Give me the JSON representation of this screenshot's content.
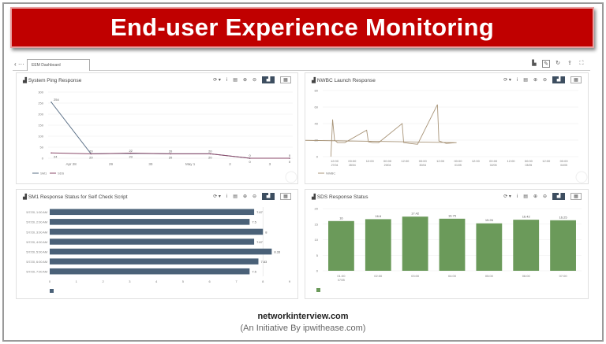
{
  "banner": {
    "title": "End-user Experience Monitoring"
  },
  "toolbar": {
    "tab_label": "EEM Dashboard",
    "back": "‹ ···",
    "icons": [
      "chart-icon",
      "edit-icon",
      "refresh-icon",
      "share-icon",
      "fullscreen-icon"
    ]
  },
  "panel_icons": {
    "refresh": "⟳ ▾",
    "info": "i",
    "doc": "▤",
    "zoom_in": "⊕",
    "zoom_out": "⊖",
    "table": "▦"
  },
  "panels": [
    {
      "title": "System Ping Response"
    },
    {
      "title": "NWBC Launch Response"
    },
    {
      "title": "SM1 Response Status for Self Check Script"
    },
    {
      "title": "SDS Response Status"
    }
  ],
  "chart_data": [
    {
      "type": "line",
      "ylim": [
        0,
        300
      ],
      "yticks": [
        0,
        50,
        100,
        150,
        200,
        250,
        300
      ],
      "x_tick_labels": [
        "Apr 28",
        "29",
        "30",
        "May 1",
        "2",
        "3"
      ],
      "series": [
        {
          "name": "SM1",
          "color": "#5a6f86",
          "values": [
            254,
            20,
            22,
            20,
            20,
            0,
            0
          ]
        },
        {
          "name": "SDS",
          "color": "#8b4a6a",
          "values": [
            24,
            20,
            23,
            20,
            20,
            0,
            0
          ]
        }
      ],
      "legend": "bottom-left"
    },
    {
      "type": "line",
      "ylim": [
        0,
        80
      ],
      "yticks": [
        0,
        20,
        40,
        60,
        80
      ],
      "x_ticks": [
        [
          "12:00",
          "27/04"
        ],
        [
          "00:00",
          "28/04"
        ],
        [
          "12:00",
          ""
        ],
        [
          "00:00",
          "29/04"
        ],
        [
          "12:00",
          ""
        ],
        [
          "00:00",
          "30/04"
        ],
        [
          "12:00",
          ""
        ],
        [
          "00:00",
          "01/05"
        ],
        [
          "12:00",
          ""
        ],
        [
          "00:00",
          "02/05"
        ],
        [
          "12:00",
          ""
        ],
        [
          "00:00",
          "03/05"
        ],
        [
          "12:00",
          ""
        ],
        [
          "00:00",
          "04/05"
        ]
      ],
      "series": [
        {
          "name": "NWBC",
          "color": "#a89478",
          "points": [
            [
              "27/04 09:30",
              0
            ],
            [
              "27/04 10:40",
              45
            ],
            [
              "27/04 12:00",
              20
            ],
            [
              "27/04 14:00",
              17
            ],
            [
              "27/04 19:00",
              17
            ],
            [
              "28/04 09:50",
              32
            ],
            [
              "28/04 11:00",
              18
            ],
            [
              "28/04 14:00",
              17
            ],
            [
              "28/04 18:00",
              17
            ],
            [
              "29/04 10:00",
              40
            ],
            [
              "29/04 11:00",
              17
            ],
            [
              "29/04 15:00",
              16
            ],
            [
              "29/04 20:30",
              15
            ],
            [
              "30/04 10:00",
              63
            ],
            [
              "30/04 11:00",
              19
            ],
            [
              "30/04 16:00",
              16
            ],
            [
              "30/04 23:00",
              17
            ],
            [
              "01/05 10:30",
              36
            ],
            [
              "01/05 11:30",
              17
            ],
            [
              "01/05 20:00",
              19
            ],
            [
              "02/05 05:30",
              19
            ],
            [
              "02/05 07:00",
              0
            ],
            [
              "04/05 06:00",
              0
            ]
          ]
        }
      ],
      "legend": "bottom-left"
    },
    {
      "type": "bar",
      "orientation": "horizontal",
      "xlim": [
        0,
        9
      ],
      "xticks": [
        0,
        1,
        2,
        3,
        4,
        5,
        6,
        7,
        8,
        9
      ],
      "categories": [
        "5/7/20, 1:00 AM",
        "5/7/20, 2:00 AM",
        "5/7/20, 3:00 AM",
        "5/7/20, 4:00 AM",
        "5/7/20, 5:00 AM",
        "5/7/20, 6:00 AM",
        "5/7/20, 7:00 AM"
      ],
      "values": [
        7.67,
        7.5,
        8,
        7.67,
        8.33,
        7.83,
        7.5
      ],
      "color": "#4a6178"
    },
    {
      "type": "bar",
      "ylim": [
        0,
        20
      ],
      "yticks": [
        0,
        5,
        10,
        15,
        20
      ],
      "categories": [
        [
          "01:00",
          "07/05"
        ],
        [
          "02:00",
          ""
        ],
        [
          "03:00",
          ""
        ],
        [
          "04:00",
          ""
        ],
        [
          "05:00",
          ""
        ],
        [
          "06:00",
          ""
        ],
        [
          "07:00",
          ""
        ]
      ],
      "values": [
        16,
        16.6,
        17.42,
        16.75,
        15.26,
        16.42,
        16.25
      ],
      "color": "#6b9a5a"
    }
  ],
  "footer": {
    "site": "networkinterview.com",
    "tagline": "(An Initiative By ipwithease.com)"
  }
}
